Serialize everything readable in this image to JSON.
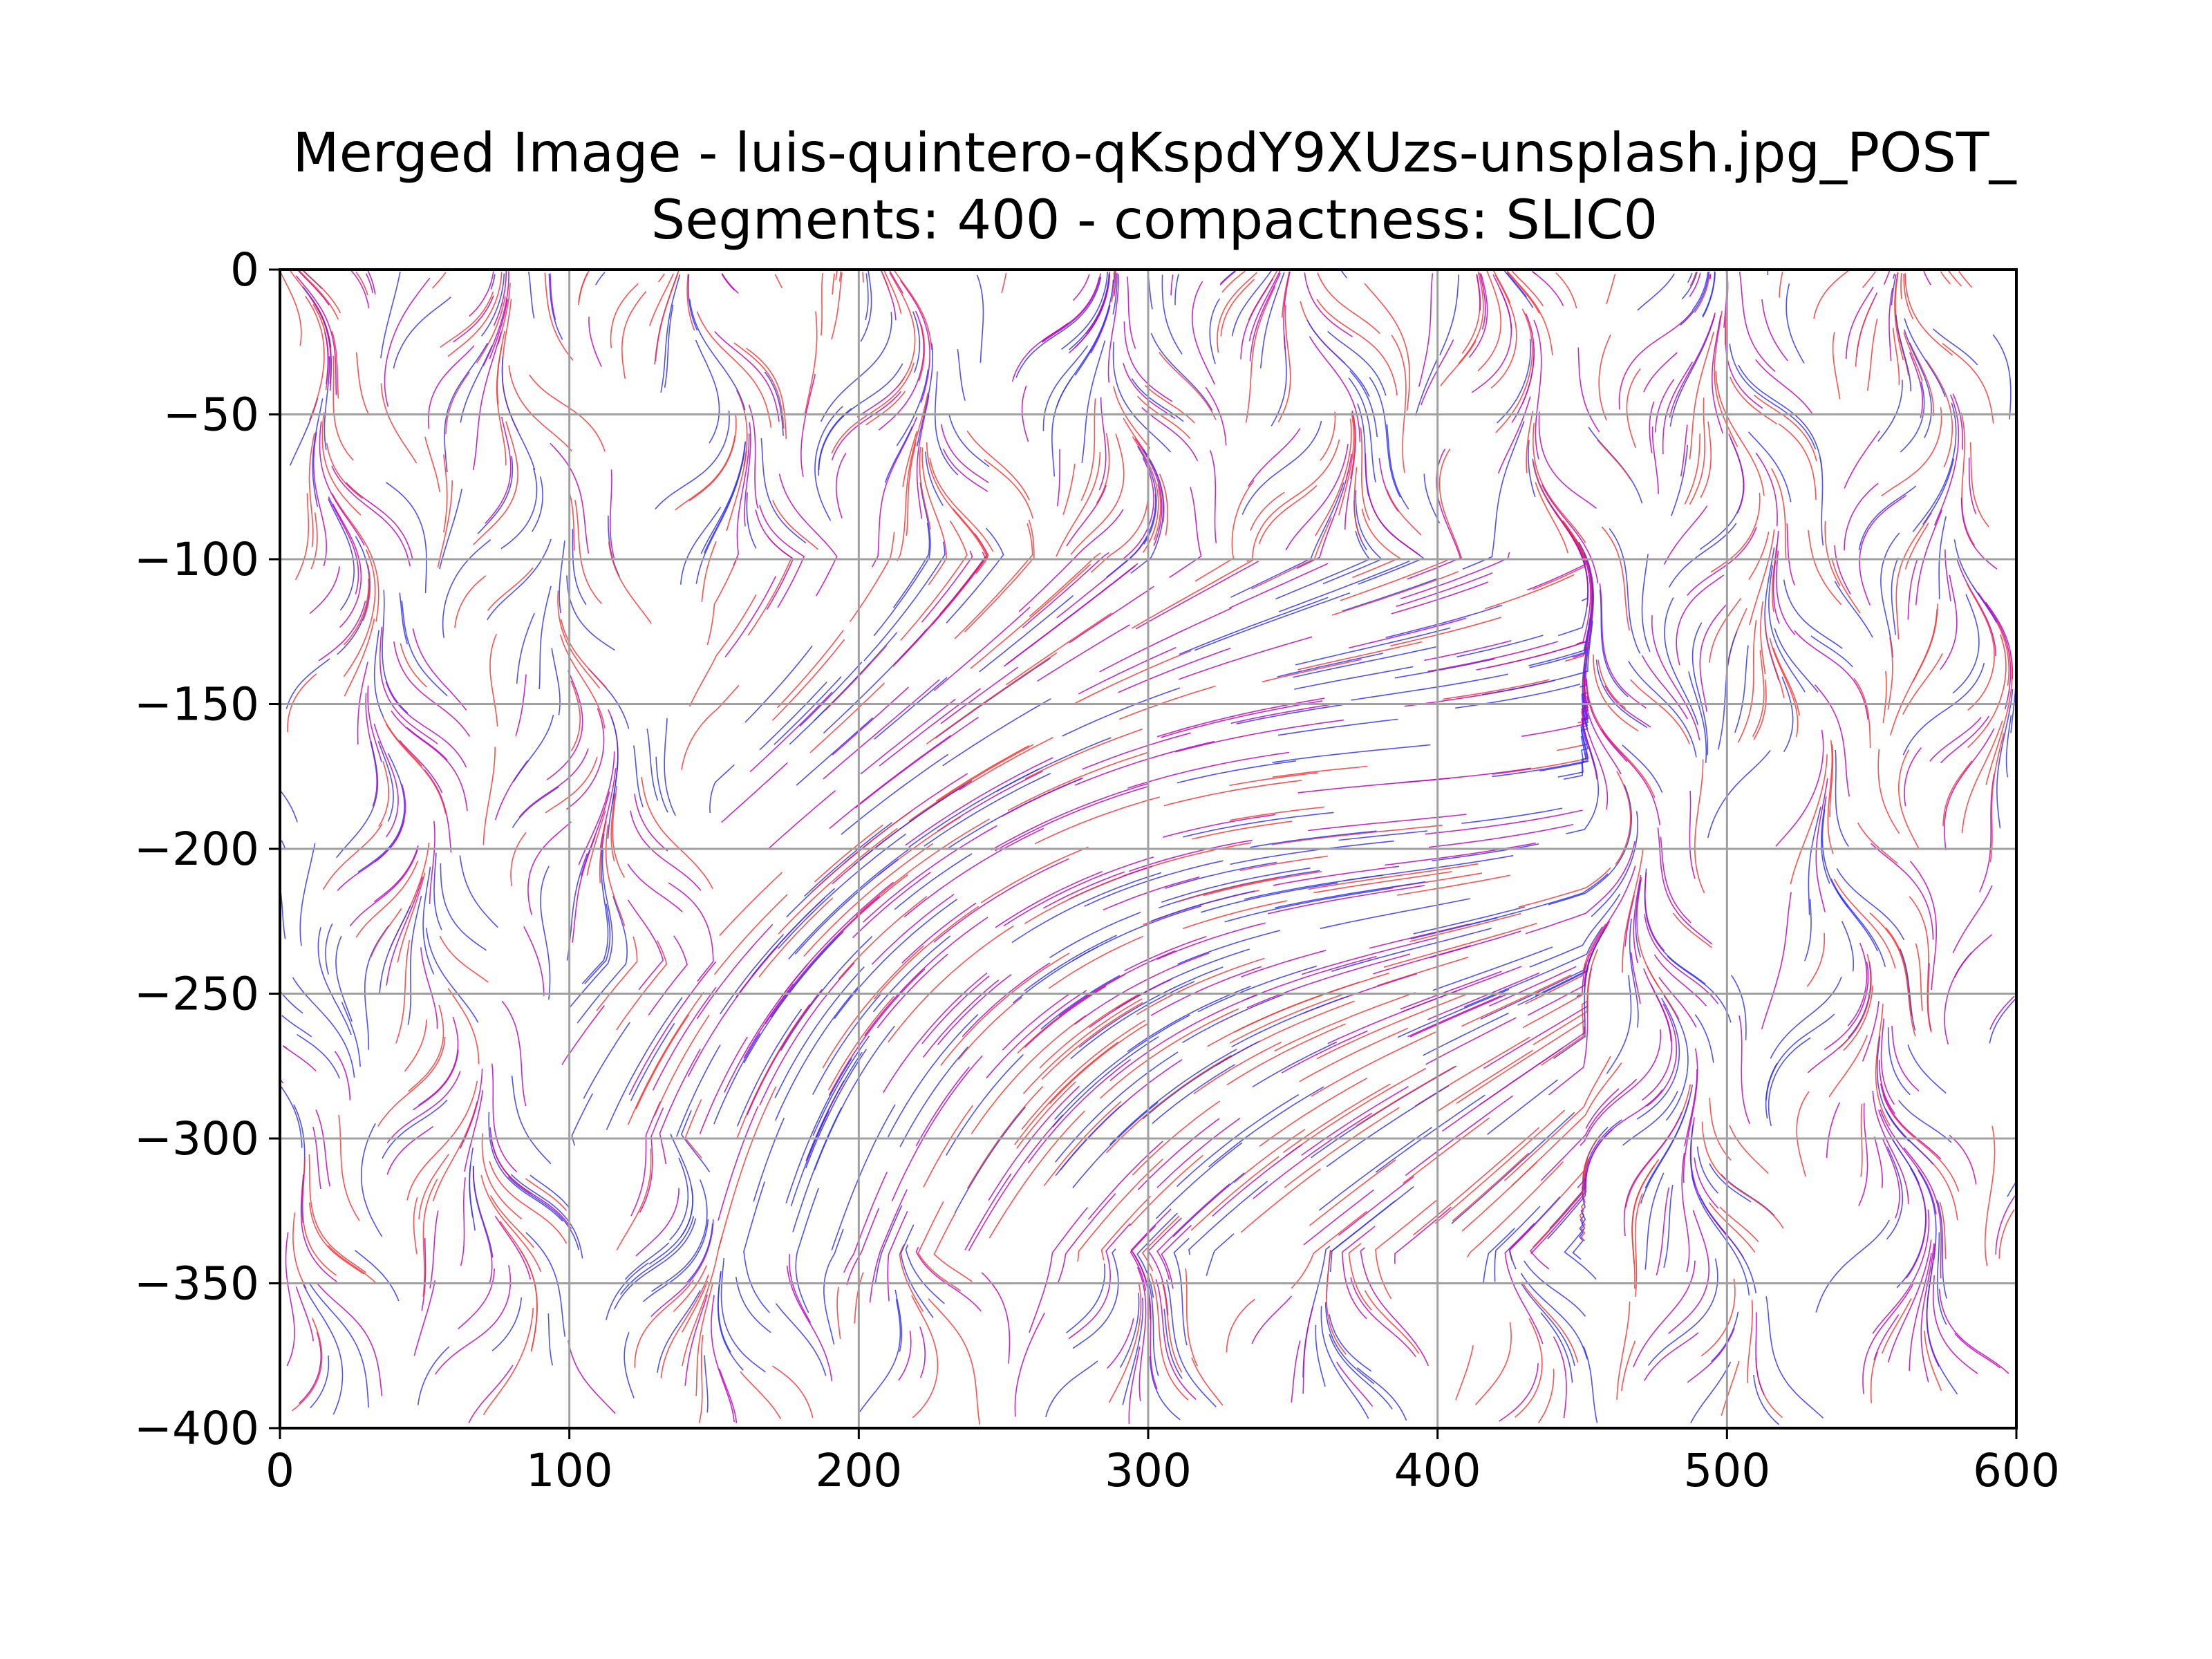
{
  "chart_data": {
    "type": "streamplot",
    "title_lines": [
      "Merged Image - luis-quintero-qKspdY9XUzs-unsplash.jpg_POST_",
      "Segments: 400 - compactness: SLIC0"
    ],
    "xlabel": "",
    "ylabel": "",
    "xlim": [
      0,
      600
    ],
    "ylim": [
      -400,
      0
    ],
    "x_ticks": [
      0,
      100,
      200,
      300,
      400,
      500,
      600
    ],
    "y_ticks": [
      0,
      -50,
      -100,
      -150,
      -200,
      -250,
      -300,
      -350,
      -400
    ],
    "x_tick_labels": [
      "0",
      "100",
      "200",
      "300",
      "400",
      "500",
      "600"
    ],
    "y_tick_labels": [
      "0",
      "−50",
      "−100",
      "−150",
      "−200",
      "−250",
      "−300",
      "−350",
      "−400"
    ],
    "grid": true,
    "series_colors": [
      "#ff3030",
      "#3030ff",
      "#c000c0"
    ],
    "grid_color": "#a0a0a0",
    "smooth_regions": [
      {
        "x": [
          150,
          450
        ],
        "y": [
          -340,
          -100
        ]
      },
      {
        "x": [
          100,
          200
        ],
        "y": [
          -300,
          -240
        ]
      }
    ]
  }
}
